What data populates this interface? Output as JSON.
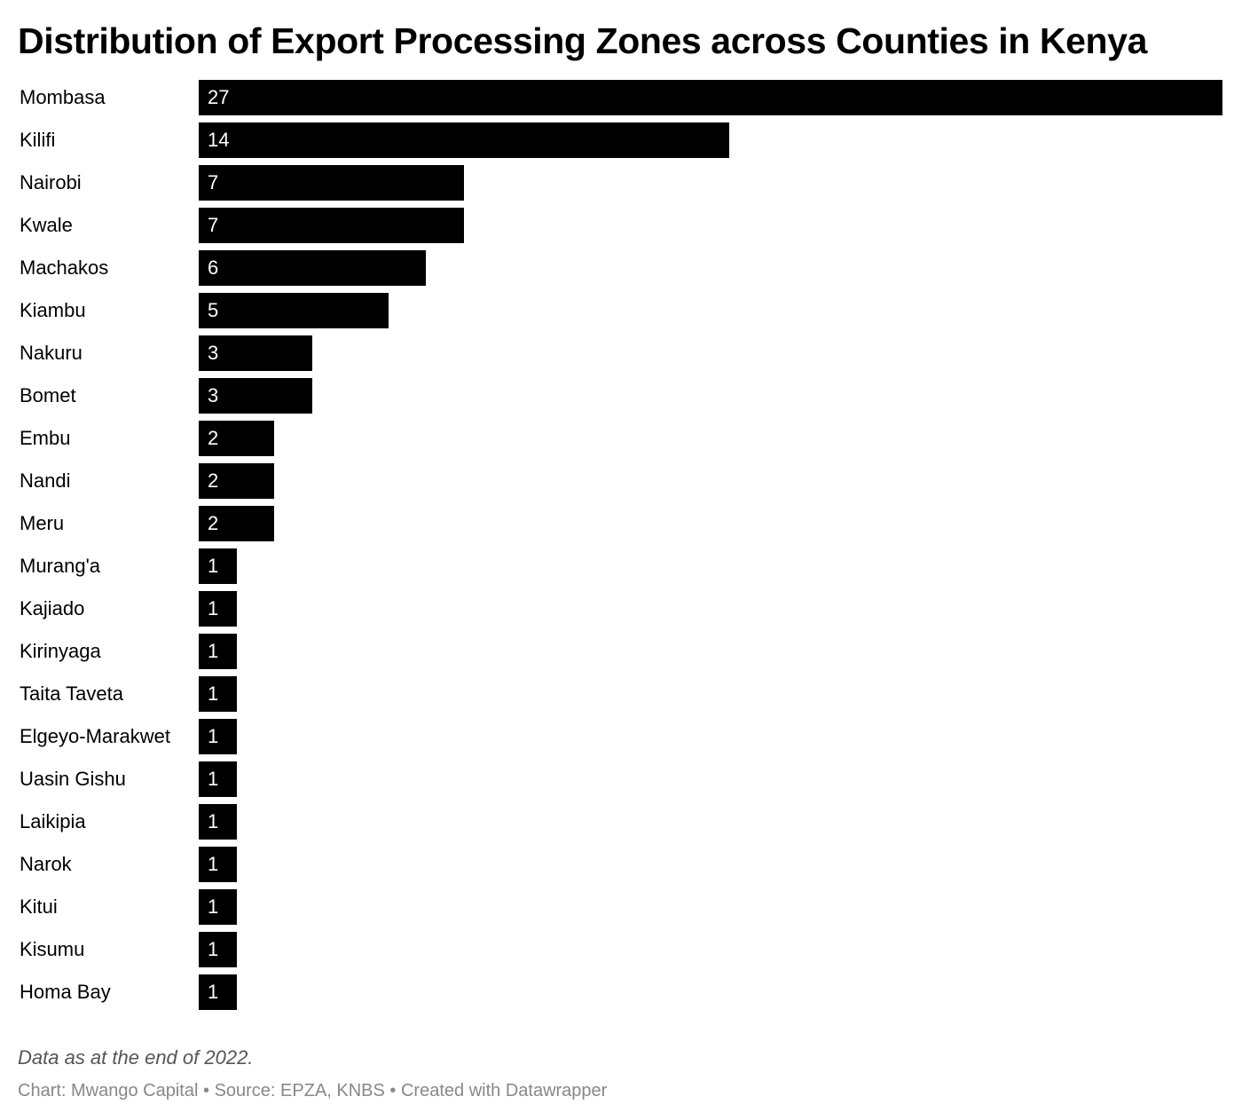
{
  "chart_data": {
    "type": "bar",
    "orientation": "horizontal",
    "title": "Distribution of Export Processing Zones across Counties in Kenya",
    "categories": [
      "Mombasa",
      "Kilifi",
      "Nairobi",
      "Kwale",
      "Machakos",
      "Kiambu",
      "Nakuru",
      "Bomet",
      "Embu",
      "Nandi",
      "Meru",
      "Murang'a",
      "Kajiado",
      "Kirinyaga",
      "Taita Taveta",
      "Elgeyo-Marakwet",
      "Uasin Gishu",
      "Laikipia",
      "Narok",
      "Kitui",
      "Kisumu",
      "Homa Bay"
    ],
    "values": [
      27,
      14,
      7,
      7,
      6,
      5,
      3,
      3,
      2,
      2,
      2,
      1,
      1,
      1,
      1,
      1,
      1,
      1,
      1,
      1,
      1,
      1
    ],
    "xlim": [
      0,
      27
    ],
    "grid": false,
    "bar_color": "#000000",
    "value_label_color": "#ffffff"
  },
  "notes": "Data as at the end of 2022.",
  "footer": {
    "credit": "Chart: Mwango Capital",
    "source": "Source: EPZA, KNBS",
    "tool": "Created with Datawrapper",
    "separator": " • "
  }
}
